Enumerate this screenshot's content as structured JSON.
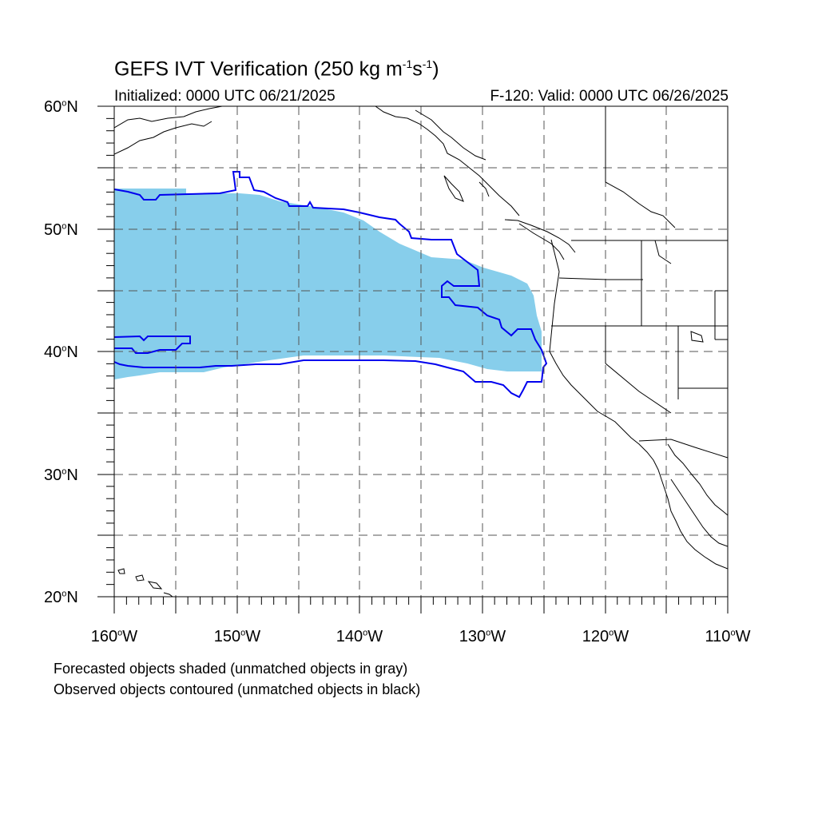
{
  "title": {
    "main": "GEFS IVT Verification (250 kg m",
    "exp1": "-1",
    "mid": "s",
    "exp2": "-1",
    "end": ")"
  },
  "initialized": "Initialized: 0000 UTC 06/21/2025",
  "valid": "F-120: Valid: 0000 UTC 06/26/2025",
  "lat_labels": [
    {
      "value": "60",
      "hemi": "N"
    },
    {
      "value": "50",
      "hemi": "N"
    },
    {
      "value": "40",
      "hemi": "N"
    },
    {
      "value": "30",
      "hemi": "N"
    },
    {
      "value": "20",
      "hemi": "N"
    }
  ],
  "lon_labels": [
    {
      "value": "160",
      "hemi": "W"
    },
    {
      "value": "150",
      "hemi": "W"
    },
    {
      "value": "140",
      "hemi": "W"
    },
    {
      "value": "130",
      "hemi": "W"
    },
    {
      "value": "120",
      "hemi": "W"
    },
    {
      "value": "110",
      "hemi": "W"
    }
  ],
  "degree_symbol": "o",
  "notes": {
    "forecast": "Forecasted objects shaded (unmatched objects in gray)",
    "observed": "Observed objects contoured (unmatched objects in black)"
  },
  "colors": {
    "forecast_fill": "#87ceeb",
    "observed_contour": "#0000ee",
    "coastline": "#000000",
    "grid": "#555555"
  },
  "map_extent": {
    "lon_min": -160,
    "lon_max": -110,
    "lat_min": 20,
    "lat_max": 60
  }
}
